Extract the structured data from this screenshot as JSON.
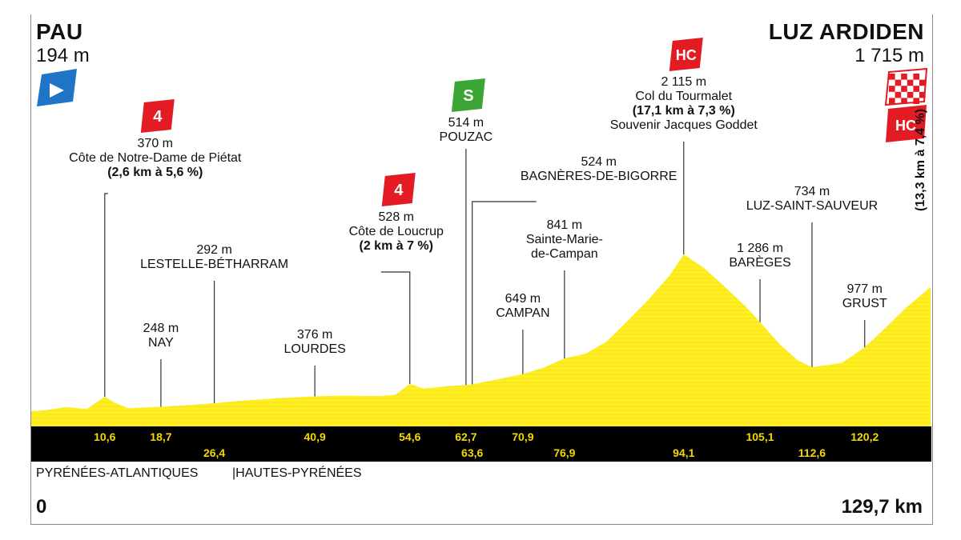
{
  "start": {
    "name": "PAU",
    "altitude": "194 m"
  },
  "finish": {
    "name": "LUZ ARDIDEN",
    "altitude": "1 715 m",
    "climb_category": "HC",
    "climb_detail": "(13,3 km à 7,4 %)"
  },
  "distance_start": "0",
  "distance_total": "129,7 km",
  "departments": [
    "PYRÉNÉES-ATLANTIQUES",
    "|HAUTES-PYRÉNÉES"
  ],
  "colors": {
    "profile_fill": "#FFEE22",
    "strip": "#000000",
    "km_label": "#F5D800",
    "category_badge": "#E31B23",
    "sprint_badge": "#3BA635",
    "start_flag": "#1F74C8"
  },
  "chart_data": {
    "type": "area",
    "x_unit": "km",
    "y_unit": "m",
    "xlim": [
      0,
      129.7
    ],
    "ylim": [
      0,
      2300
    ],
    "profile": [
      [
        0,
        194
      ],
      [
        2,
        205
      ],
      [
        5,
        245
      ],
      [
        8,
        220
      ],
      [
        10.6,
        370
      ],
      [
        12,
        300
      ],
      [
        14,
        230
      ],
      [
        18.7,
        248
      ],
      [
        22,
        265
      ],
      [
        26.4,
        292
      ],
      [
        30,
        320
      ],
      [
        35,
        350
      ],
      [
        40.9,
        376
      ],
      [
        45,
        385
      ],
      [
        50,
        380
      ],
      [
        52.5,
        395
      ],
      [
        54.6,
        528
      ],
      [
        56.5,
        470
      ],
      [
        60,
        500
      ],
      [
        62.7,
        514
      ],
      [
        63.6,
        524
      ],
      [
        67,
        580
      ],
      [
        70.9,
        649
      ],
      [
        74,
        730
      ],
      [
        76.9,
        841
      ],
      [
        80,
        900
      ],
      [
        83,
        1050
      ],
      [
        86,
        1300
      ],
      [
        89,
        1560
      ],
      [
        92,
        1850
      ],
      [
        94.1,
        2115
      ],
      [
        97,
        1950
      ],
      [
        100,
        1720
      ],
      [
        103,
        1480
      ],
      [
        105.1,
        1286
      ],
      [
        108,
        1010
      ],
      [
        110.5,
        820
      ],
      [
        112.6,
        734
      ],
      [
        115,
        760
      ],
      [
        117,
        790
      ],
      [
        120.2,
        977
      ],
      [
        123,
        1200
      ],
      [
        126,
        1450
      ],
      [
        129.7,
        1715
      ]
    ],
    "km_markers": [
      {
        "km": 10.6,
        "label": "10,6"
      },
      {
        "km": 18.7,
        "label": "18,7"
      },
      {
        "km": 26.4,
        "label": "26,4"
      },
      {
        "km": 40.9,
        "label": "40,9"
      },
      {
        "km": 54.6,
        "label": "54,6"
      },
      {
        "km": 62.7,
        "label": "62,7"
      },
      {
        "km": 63.6,
        "label": "63,6"
      },
      {
        "km": 70.9,
        "label": "70,9"
      },
      {
        "km": 76.9,
        "label": "76,9"
      },
      {
        "km": 94.1,
        "label": "94,1"
      },
      {
        "km": 105.1,
        "label": "105,1"
      },
      {
        "km": 112.6,
        "label": "112,6"
      },
      {
        "km": 120.2,
        "label": "120,2"
      }
    ],
    "waypoints": [
      {
        "km": 10.6,
        "lines": [
          "370 m",
          "Côte de Notre-Dame de Piétat",
          "(2,6 km à 5,6 %)"
        ],
        "bold_last": true,
        "badge": "4",
        "badge_type": "category"
      },
      {
        "km": 18.7,
        "lines": [
          "248 m",
          "NAY"
        ]
      },
      {
        "km": 26.4,
        "lines": [
          "292 m",
          "LESTELLE-BÉTHARRAM"
        ]
      },
      {
        "km": 40.9,
        "lines": [
          "376 m",
          "LOURDES"
        ]
      },
      {
        "km": 54.6,
        "lines": [
          "528 m",
          "Côte de Loucrup",
          "(2 km à 7 %)"
        ],
        "bold_last": true,
        "badge": "4",
        "badge_type": "category"
      },
      {
        "km": 62.7,
        "lines": [
          "514 m",
          "POUZAC"
        ],
        "badge": "S",
        "badge_type": "sprint"
      },
      {
        "km": 63.6,
        "lines": [
          "524 m",
          "BAGNÈRES-DE-BIGORRE"
        ]
      },
      {
        "km": 70.9,
        "lines": [
          "649 m",
          "CAMPAN"
        ]
      },
      {
        "km": 76.9,
        "lines": [
          "841 m",
          "Sainte-Marie-",
          "de-Campan"
        ]
      },
      {
        "km": 94.1,
        "lines": [
          "2 115 m",
          "Col du Tourmalet",
          "(17,1 km à 7,3 %)",
          "Souvenir Jacques Goddet"
        ],
        "bold_index": 2,
        "badge": "HC",
        "badge_type": "category"
      },
      {
        "km": 105.1,
        "lines": [
          "1 286 m",
          "BARÈGES"
        ]
      },
      {
        "km": 112.6,
        "lines": [
          "734 m",
          "LUZ-SAINT-SAUVEUR"
        ]
      },
      {
        "km": 120.2,
        "lines": [
          "977 m",
          "GRUST"
        ]
      }
    ]
  }
}
